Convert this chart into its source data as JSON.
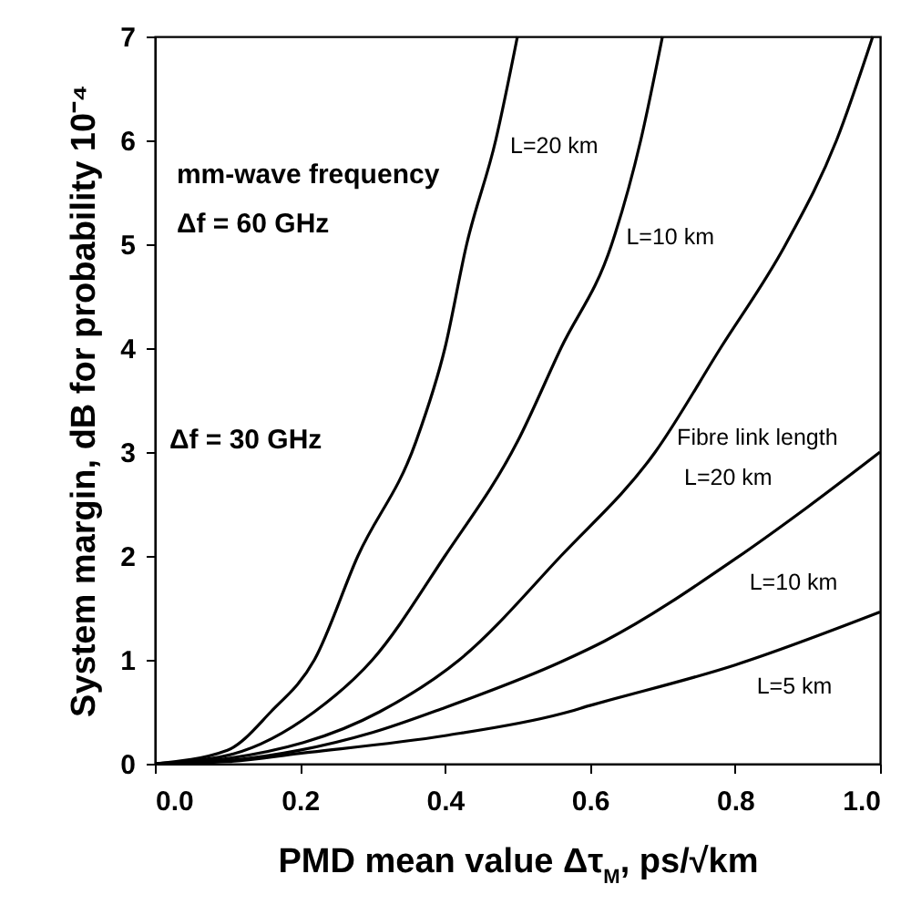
{
  "chart_data": {
    "type": "line",
    "xlabel": "PMD mean value Δτ$_{M}$, ps/√km",
    "ylabel": "System margin, dB for probability 10⁻⁴",
    "xlim": [
      0,
      1.0
    ],
    "ylim": [
      0,
      7
    ],
    "xticks": [
      {
        "value": 0,
        "label": "0.0"
      },
      0.2,
      0.4,
      0.6,
      0.8,
      {
        "value": 1,
        "label": "1.0"
      }
    ],
    "yticks": [
      0,
      1,
      2,
      3,
      4,
      5,
      6,
      7
    ],
    "grid": false,
    "marker": "none",
    "line_style": "solid",
    "series": [
      {
        "color": "#000000",
        "x": [
          0,
          0.1,
          0.16,
          0.22,
          0.28,
          0.36,
          0.4,
          0.43,
          0.47,
          0.5
        ],
        "values": [
          0,
          0.13,
          0.5,
          1.0,
          2.0,
          3.1,
          4.0,
          5.0,
          6.0,
          7.0
        ]
      },
      {
        "color": "#000000",
        "x": [
          0,
          0.1,
          0.22,
          0.3,
          0.4,
          0.5,
          0.56,
          0.63,
          0.67,
          0.7
        ],
        "values": [
          0,
          0.08,
          0.5,
          1.0,
          2.0,
          3.1,
          4.0,
          5.0,
          6.0,
          7.0
        ]
      },
      {
        "color": "#000000",
        "x": [
          0,
          0.1,
          0.31,
          0.42,
          0.56,
          0.69,
          0.78,
          0.87,
          0.94,
          0.99
        ],
        "values": [
          0,
          0.05,
          0.5,
          1.0,
          2.0,
          3.0,
          4.0,
          5.0,
          6.0,
          7.0
        ]
      },
      {
        "color": "#000000",
        "x": [
          0,
          0.1,
          0.2,
          0.3,
          0.4,
          0.56,
          0.62,
          0.8,
          0.9,
          1.0
        ],
        "values": [
          0,
          0.03,
          0.13,
          0.3,
          0.54,
          0.98,
          1.18,
          1.97,
          2.47,
          3.0
        ]
      },
      {
        "color": "#000000",
        "x": [
          0,
          0.1,
          0.2,
          0.4,
          0.56,
          0.6,
          0.8,
          1.0
        ],
        "values": [
          0,
          0.02,
          0.1,
          0.27,
          0.48,
          0.56,
          0.95,
          1.46
        ]
      }
    ],
    "annotations": [
      "mm-wave frequency",
      "Δf = 60 GHz",
      "L=20 km",
      "L=10 km",
      "Δf = 30 GHz",
      "Fibre link length",
      "L=20 km",
      "L=10 km",
      "L=5 km"
    ]
  }
}
